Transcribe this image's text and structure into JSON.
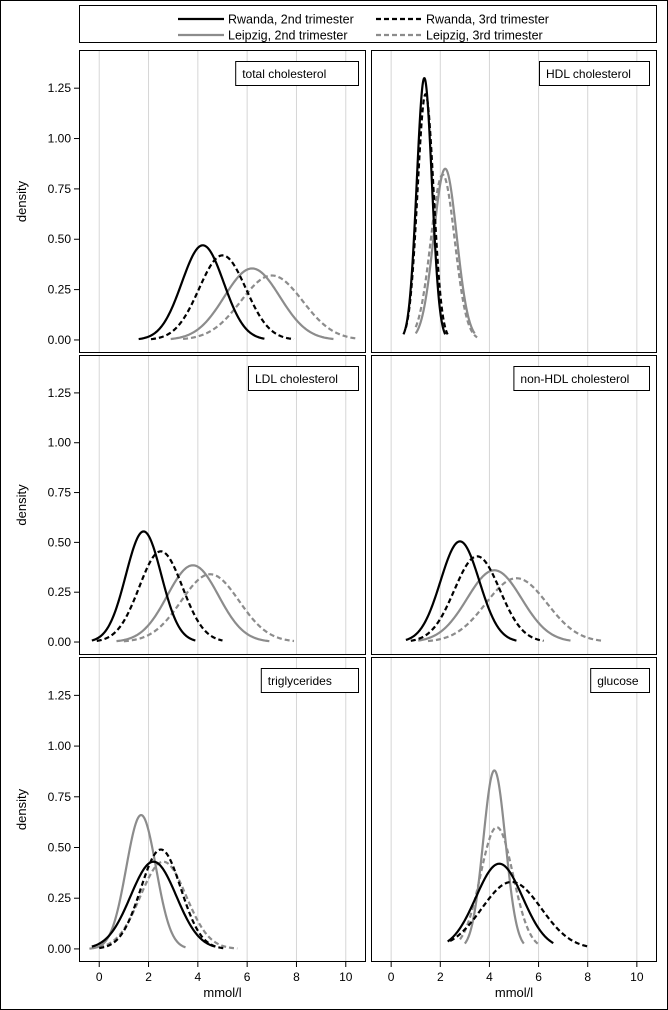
{
  "chart_data": {
    "type": "line",
    "subtype": "density-curves-faceted",
    "x_axis": {
      "label": "mmol/l",
      "range": [
        -0.8,
        10.8
      ],
      "ticks": [
        0,
        2,
        4,
        6,
        8,
        10
      ]
    },
    "y_axis": {
      "label": "density",
      "range": [
        -0.03,
        1.38
      ],
      "ticks": [
        0.0,
        0.25,
        0.5,
        0.75,
        1.0,
        1.25
      ],
      "tick_labels": [
        "0.00",
        "0.25",
        "0.50",
        "0.75",
        "1.00",
        "1.25"
      ]
    },
    "grid": "vertical",
    "legend": {
      "placement": "top",
      "entries": [
        {
          "id": "r2",
          "label": "Rwanda, 2nd trimester",
          "color": "#000000",
          "dash": "solid"
        },
        {
          "id": "r3",
          "label": "Rwanda, 3rd trimester",
          "color": "#000000",
          "dash": "dashed"
        },
        {
          "id": "l2",
          "label": "Leipzig, 2nd trimester",
          "color": "#8c8c8c",
          "dash": "solid"
        },
        {
          "id": "l3",
          "label": "Leipzig, 3rd trimester",
          "color": "#8c8c8c",
          "dash": "dashed"
        }
      ]
    },
    "panels": [
      {
        "title": "total cholesterol",
        "series": {
          "r2": {
            "mean": 4.2,
            "peak": 0.47,
            "range": [
              1.6,
              6.7
            ]
          },
          "r3": {
            "mean": 5.0,
            "peak": 0.42,
            "range": [
              2.1,
              7.9
            ]
          },
          "l2": {
            "mean": 6.2,
            "peak": 0.355,
            "range": [
              2.9,
              9.5
            ]
          },
          "l3": {
            "mean": 7.0,
            "peak": 0.32,
            "range": [
              3.4,
              10.5
            ]
          }
        }
      },
      {
        "title": "HDL cholesterol",
        "series": {
          "r2": {
            "mean": 1.35,
            "peak": 1.3,
            "range": [
              0.5,
              2.2
            ]
          },
          "r3": {
            "mean": 1.4,
            "peak": 1.22,
            "range": [
              0.6,
              2.3
            ]
          },
          "l2": {
            "mean": 2.2,
            "peak": 0.85,
            "range": [
              1.0,
              3.4
            ]
          },
          "l3": {
            "mean": 2.1,
            "peak": 0.82,
            "range": [
              1.0,
              3.5
            ]
          }
        }
      },
      {
        "title": "LDL cholesterol",
        "series": {
          "r2": {
            "mean": 1.8,
            "peak": 0.555,
            "range": [
              -0.3,
              3.9
            ]
          },
          "r3": {
            "mean": 2.5,
            "peak": 0.455,
            "range": [
              -0.1,
              5.0
            ]
          },
          "l2": {
            "mean": 3.8,
            "peak": 0.385,
            "range": [
              0.7,
              6.9
            ]
          },
          "l3": {
            "mean": 4.5,
            "peak": 0.34,
            "range": [
              1.0,
              7.9
            ]
          }
        }
      },
      {
        "title": "non-HDL cholesterol",
        "series": {
          "r2": {
            "mean": 2.8,
            "peak": 0.505,
            "range": [
              0.6,
              5.1
            ]
          },
          "r3": {
            "mean": 3.5,
            "peak": 0.43,
            "range": [
              0.8,
              6.2
            ]
          },
          "l2": {
            "mean": 4.2,
            "peak": 0.36,
            "range": [
              1.1,
              7.3
            ]
          },
          "l3": {
            "mean": 5.1,
            "peak": 0.32,
            "range": [
              1.5,
              8.6
            ]
          }
        }
      },
      {
        "title": "triglycerides",
        "series": {
          "r2": {
            "mean": 2.2,
            "peak": 0.43,
            "range": [
              -0.3,
              4.7
            ]
          },
          "r3": {
            "mean": 2.5,
            "peak": 0.49,
            "range": [
              0.0,
              5.1
            ]
          },
          "l2": {
            "mean": 1.7,
            "peak": 0.66,
            "range": [
              -0.4,
              3.5
            ]
          },
          "l3": {
            "mean": 2.6,
            "peak": 0.43,
            "range": [
              0.0,
              5.6
            ]
          }
        }
      },
      {
        "title": "glucose",
        "series": {
          "r2": {
            "mean": 4.4,
            "peak": 0.42,
            "range": [
              2.3,
              6.6
            ]
          },
          "r3": {
            "mean": 4.9,
            "peak": 0.33,
            "range": [
              2.4,
              8.0
            ]
          },
          "l2": {
            "mean": 4.2,
            "peak": 0.88,
            "range": [
              3.0,
              5.4
            ]
          },
          "l3": {
            "mean": 4.3,
            "peak": 0.6,
            "range": [
              2.8,
              6.0
            ]
          }
        }
      }
    ]
  }
}
